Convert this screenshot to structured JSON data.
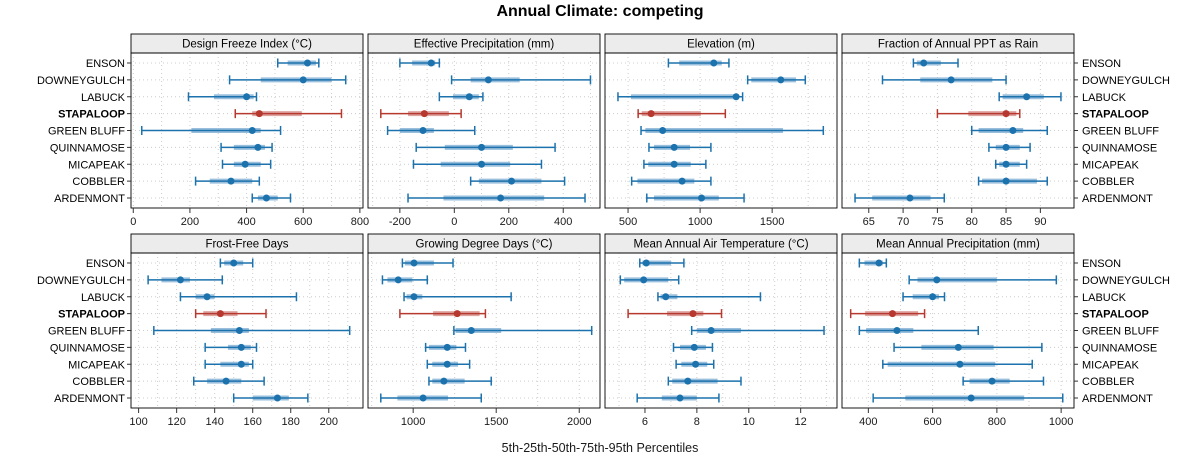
{
  "chart_data": {
    "type": "dotplot-intervals",
    "title": "Annual Climate: competing",
    "caption": "5th-25th-50th-75th-95th Percentiles",
    "percentiles": [
      5,
      25,
      50,
      75,
      95
    ],
    "sites": [
      "ENSON",
      "DOWNEYGULCH",
      "LABUCK",
      "STAPALOOP",
      "GREEN BLUFF",
      "QUINNAMOSE",
      "MICAPEAK",
      "COBBLER",
      "ARDENMONT"
    ],
    "highlight_site": "STAPALOOP",
    "legend_position": "none",
    "grid": {
      "rows": 2,
      "cols": 4,
      "gridlines": "dotted"
    },
    "colors": {
      "series": "#1c72ad",
      "series_band": "#9abfdd",
      "highlight": "#b6382e",
      "highlight_band": "#dda5a0",
      "strip_bg": "#ececec",
      "panel_border": "#000000",
      "gridline": "#cccccc",
      "axis_text": "#1a1a1a"
    },
    "panels": [
      {
        "title": "Design Freeze Index (°C)",
        "row": 0,
        "col": 0,
        "xlim": [
          -8,
          811
        ],
        "ticks": [
          0,
          200,
          400,
          600,
          800
        ],
        "grid_step": 100,
        "values": {
          "ENSON": [
            510,
            545,
            615,
            645,
            655
          ],
          "DOWNEYGULCH": [
            340,
            450,
            600,
            700,
            750
          ],
          "LABUCK": [
            195,
            285,
            400,
            425,
            435
          ],
          "STAPALOOP": [
            360,
            420,
            445,
            595,
            735
          ],
          "GREEN BLUFF": [
            30,
            205,
            420,
            450,
            520
          ],
          "QUINNAMOSE": [
            310,
            355,
            440,
            465,
            490
          ],
          "MICAPEAK": [
            315,
            355,
            395,
            450,
            485
          ],
          "COBBLER": [
            220,
            270,
            345,
            420,
            445
          ],
          "ARDENMONT": [
            420,
            440,
            470,
            510,
            555
          ]
        }
      },
      {
        "title": "Effective Precipitation (mm)",
        "row": 0,
        "col": 1,
        "xlim": [
          -317,
          535
        ],
        "ticks": [
          -200,
          0,
          200,
          400
        ],
        "grid_step": 100,
        "values": {
          "ENSON": [
            -200,
            -155,
            -85,
            -70,
            -55
          ],
          "DOWNEYGULCH": [
            -10,
            60,
            125,
            240,
            500
          ],
          "LABUCK": [
            -55,
            -5,
            55,
            90,
            105
          ],
          "STAPALOOP": [
            -270,
            -170,
            -110,
            -20,
            25
          ],
          "GREEN BLUFF": [
            -245,
            -200,
            -115,
            -75,
            75
          ],
          "QUINNAMOSE": [
            -140,
            -35,
            100,
            215,
            370
          ],
          "MICAPEAK": [
            -150,
            -50,
            100,
            205,
            320
          ],
          "COBBLER": [
            60,
            90,
            210,
            320,
            405
          ],
          "ARDENMONT": [
            -170,
            -40,
            170,
            330,
            480
          ]
        }
      },
      {
        "title": "Elevation (m)",
        "row": 0,
        "col": 2,
        "xlim": [
          340,
          1950
        ],
        "ticks": [
          500,
          1000,
          1500
        ],
        "grid_step": 250,
        "values": {
          "ENSON": [
            780,
            855,
            1095,
            1150,
            1200
          ],
          "DOWNEYGULCH": [
            1330,
            1355,
            1560,
            1665,
            1730
          ],
          "LABUCK": [
            430,
            520,
            1250,
            1265,
            1295
          ],
          "STAPALOOP": [
            570,
            595,
            660,
            1005,
            1175
          ],
          "GREEN BLUFF": [
            590,
            620,
            740,
            1575,
            1855
          ],
          "QUINNAMOSE": [
            645,
            680,
            820,
            930,
            1075
          ],
          "MICAPEAK": [
            610,
            640,
            820,
            935,
            1040
          ],
          "COBBLER": [
            525,
            565,
            875,
            960,
            1075
          ],
          "ARDENMONT": [
            630,
            680,
            1010,
            1130,
            1305
          ]
        }
      },
      {
        "title": "Fraction of Annual PPT as Rain",
        "row": 0,
        "col": 3,
        "xlim": [
          61.1,
          94.9
        ],
        "ticks": [
          65,
          70,
          75,
          80,
          85,
          90
        ],
        "grid_step": 5,
        "values": {
          "ENSON": [
            71.5,
            72,
            73,
            75.5,
            78
          ],
          "DOWNEYGULCH": [
            67,
            72.5,
            77,
            83,
            85
          ],
          "LABUCK": [
            84,
            84.5,
            88,
            90.5,
            93
          ],
          "STAPALOOP": [
            75,
            79.5,
            85,
            86.5,
            87
          ],
          "GREEN BLUFF": [
            80,
            81,
            86,
            87.5,
            91
          ],
          "QUINNAMOSE": [
            82.5,
            83.5,
            85,
            87,
            88.5
          ],
          "MICAPEAK": [
            83.5,
            84,
            85,
            87,
            88
          ],
          "COBBLER": [
            81,
            81.5,
            85,
            89.5,
            91
          ],
          "ARDENMONT": [
            63,
            65.5,
            71,
            74,
            76
          ]
        }
      },
      {
        "title": "Frost-Free Days",
        "row": 1,
        "col": 0,
        "xlim": [
          96,
          218
        ],
        "ticks": [
          100,
          120,
          140,
          160,
          180,
          200
        ],
        "grid_step": 10,
        "values": {
          "ENSON": [
            143,
            145,
            150,
            155,
            160
          ],
          "DOWNEYGULCH": [
            105,
            112,
            122,
            127,
            144
          ],
          "LABUCK": [
            122,
            130,
            136,
            140,
            183
          ],
          "STAPALOOP": [
            130,
            134,
            143,
            152,
            167
          ],
          "GREEN BLUFF": [
            108,
            138,
            153,
            158,
            211
          ],
          "QUINNAMOSE": [
            135,
            147,
            154,
            159,
            162
          ],
          "MICAPEAK": [
            135,
            143,
            154,
            158,
            160
          ],
          "COBBLER": [
            129,
            136,
            146,
            154,
            166
          ],
          "ARDENMONT": [
            150,
            160,
            173,
            179,
            189
          ]
        }
      },
      {
        "title": "Growing Degree Days (°C)",
        "row": 1,
        "col": 1,
        "xlim": [
          728,
          2125
        ],
        "ticks": [
          1000,
          1500,
          2000
        ],
        "grid_step": 250,
        "values": {
          "ENSON": [
            935,
            950,
            1005,
            1125,
            1240
          ],
          "DOWNEYGULCH": [
            815,
            845,
            910,
            995,
            1085
          ],
          "LABUCK": [
            945,
            960,
            1005,
            1055,
            1590
          ],
          "STAPALOOP": [
            920,
            1120,
            1265,
            1400,
            1435
          ],
          "GREEN BLUFF": [
            1245,
            1255,
            1350,
            1530,
            2075
          ],
          "QUINNAMOSE": [
            1075,
            1095,
            1205,
            1260,
            1315
          ],
          "MICAPEAK": [
            1085,
            1115,
            1205,
            1270,
            1340
          ],
          "COBBLER": [
            1095,
            1115,
            1185,
            1310,
            1470
          ],
          "ARDENMONT": [
            805,
            905,
            1060,
            1210,
            1410
          ]
        }
      },
      {
        "title": "Mean Annual Air Temperature (°C)",
        "row": 1,
        "col": 2,
        "xlim": [
          4.46,
          13.4
        ],
        "ticks": [
          6,
          8,
          10,
          12
        ],
        "grid_step": 1,
        "values": {
          "ENSON": [
            5.8,
            5.9,
            6.05,
            7.0,
            7.5
          ],
          "DOWNEYGULCH": [
            5.05,
            5.2,
            5.95,
            6.9,
            7.3
          ],
          "LABUCK": [
            6.5,
            6.6,
            6.8,
            7.25,
            10.45
          ],
          "STAPALOOP": [
            5.35,
            6.85,
            7.85,
            8.25,
            8.95
          ],
          "GREEN BLUFF": [
            7.8,
            8.0,
            8.55,
            9.7,
            12.9
          ],
          "QUINNAMOSE": [
            7.1,
            7.35,
            7.9,
            8.35,
            8.6
          ],
          "MICAPEAK": [
            7.2,
            7.4,
            7.95,
            8.4,
            8.65
          ],
          "COBBLER": [
            6.9,
            7.05,
            7.65,
            8.8,
            9.7
          ],
          "ARDENMONT": [
            5.7,
            6.65,
            7.35,
            8.0,
            8.85
          ]
        }
      },
      {
        "title": "Mean Annual Precipitation (mm)",
        "row": 1,
        "col": 3,
        "xlim": [
          318,
          1040
        ],
        "ticks": [
          400,
          600,
          800,
          1000
        ],
        "grid_step": 100,
        "values": {
          "ENSON": [
            372,
            388,
            433,
            445,
            456
          ],
          "DOWNEYGULCH": [
            527,
            553,
            613,
            800,
            985
          ],
          "LABUCK": [
            508,
            538,
            600,
            620,
            637
          ],
          "STAPALOOP": [
            345,
            390,
            475,
            555,
            575
          ],
          "GREEN BLUFF": [
            372,
            393,
            489,
            540,
            742
          ],
          "QUINNAMOSE": [
            480,
            565,
            680,
            790,
            940
          ],
          "MICAPEAK": [
            445,
            460,
            685,
            795,
            910
          ],
          "COBBLER": [
            695,
            715,
            785,
            840,
            945
          ],
          "ARDENMONT": [
            415,
            515,
            720,
            885,
            1005
          ]
        }
      }
    ]
  }
}
